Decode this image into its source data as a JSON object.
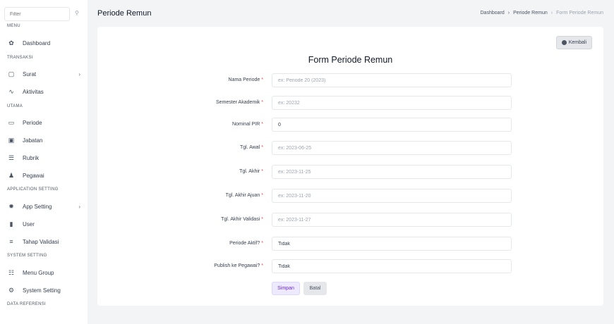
{
  "sidebar": {
    "filter_placeholder": "Filter",
    "sections": [
      {
        "label": "MENU",
        "items": [
          {
            "label": "Dashboard",
            "icon": "dashboard-icon"
          }
        ]
      },
      {
        "label": "TRANSAKSI",
        "items": [
          {
            "label": "Surat",
            "icon": "document-icon",
            "chevron": true
          },
          {
            "label": "Aktivitas",
            "icon": "activity-icon"
          }
        ]
      },
      {
        "label": "UTAMA",
        "items": [
          {
            "label": "Periode",
            "icon": "calendar-icon"
          },
          {
            "label": "Jabatan",
            "icon": "id-card-icon"
          },
          {
            "label": "Rubrik",
            "icon": "list-box-icon"
          },
          {
            "label": "Pegawai",
            "icon": "users-icon"
          }
        ]
      },
      {
        "label": "APPLICATION SETTING",
        "items": [
          {
            "label": "App Setting",
            "icon": "gear-icon",
            "chevron": true
          },
          {
            "label": "User",
            "icon": "user-badge-icon"
          },
          {
            "label": "Tahap Validasi",
            "icon": "list-icon"
          }
        ]
      },
      {
        "label": "SYSTEM SETTING",
        "items": [
          {
            "label": "Menu Group",
            "icon": "server-icon"
          },
          {
            "label": "System Setting",
            "icon": "cog-icon"
          }
        ]
      },
      {
        "label": "DATA REFERENSI",
        "items": []
      }
    ]
  },
  "header": {
    "title": "Periode Remun",
    "breadcrumb": [
      "Dashboard",
      "Periode Remun",
      "Form Periode Remun"
    ]
  },
  "form": {
    "back_label": "Kembali",
    "title": "Form Periode Remun",
    "fields": [
      {
        "label": "Nama Periode",
        "placeholder": "ex: Periode 20 (2023)",
        "value": ""
      },
      {
        "label": "Semester Akademik",
        "placeholder": "ex: 20232",
        "value": ""
      },
      {
        "label": "Nominal PIR",
        "placeholder": "",
        "value": "0"
      },
      {
        "label": "Tgl. Awal",
        "placeholder": "ex: 2023-06-25",
        "value": ""
      },
      {
        "label": "Tgl. Akhir",
        "placeholder": "ex: 2023-11-25",
        "value": ""
      },
      {
        "label": "Tgl. Akhir Ajuan",
        "placeholder": "ex: 2023-11-20",
        "value": ""
      },
      {
        "label": "Tgl. Akhir Validasi",
        "placeholder": "ex: 2023-11-27",
        "value": ""
      },
      {
        "label": "Periode Aktif?",
        "placeholder": "",
        "value": "Tidak"
      },
      {
        "label": "Publish ke Pegawai?",
        "placeholder": "",
        "value": "Tidak"
      }
    ],
    "required_mark": "*",
    "save_label": "Simpan",
    "cancel_label": "Batal"
  },
  "colors": {
    "accent": "#6d28d9",
    "required": "#ef4444"
  }
}
